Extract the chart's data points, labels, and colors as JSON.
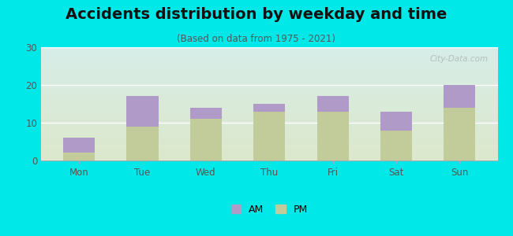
{
  "title": "Accidents distribution by weekday and time",
  "subtitle": "(Based on data from 1975 - 2021)",
  "categories": [
    "Mon",
    "Tue",
    "Wed",
    "Thu",
    "Fri",
    "Sat",
    "Sun"
  ],
  "pm_values": [
    2,
    9,
    11,
    13,
    13,
    8,
    14
  ],
  "am_values": [
    4,
    8,
    3,
    2,
    4,
    5,
    6
  ],
  "am_color": "#b09ac8",
  "pm_color": "#c2cc9a",
  "background_color": "#00e8e8",
  "plot_bg_topleft": "#d6ede8",
  "plot_bg_topright": "#e8f2ee",
  "plot_bg_bottomleft": "#dde8cc",
  "plot_bg_bottomright": "#eef2e0",
  "ylim": [
    0,
    30
  ],
  "yticks": [
    0,
    10,
    20,
    30
  ],
  "bar_width": 0.5,
  "title_fontsize": 14,
  "subtitle_fontsize": 8.5,
  "tick_fontsize": 8.5,
  "legend_fontsize": 9,
  "watermark_text": "City-Data.com"
}
